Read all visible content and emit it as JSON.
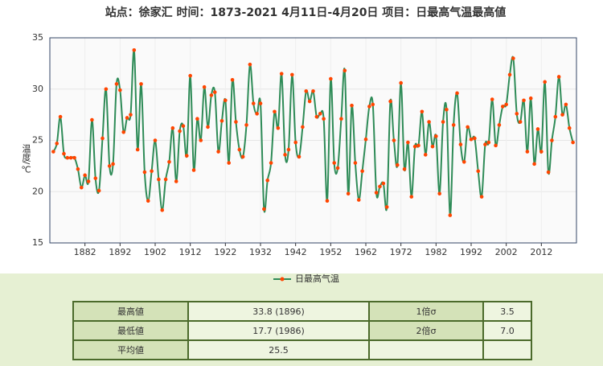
{
  "chart_data": {
    "type": "line",
    "title": "站点：徐家汇 时间：1873-2021  4月11日-4月20日 项目：日最高气温最高値",
    "y_label": "温度/℃",
    "x": [
      1873,
      1874,
      1875,
      1876,
      1877,
      1878,
      1879,
      1880,
      1881,
      1882,
      1883,
      1884,
      1885,
      1886,
      1887,
      1888,
      1889,
      1890,
      1891,
      1892,
      1893,
      1894,
      1895,
      1896,
      1897,
      1898,
      1899,
      1900,
      1901,
      1902,
      1903,
      1904,
      1905,
      1906,
      1907,
      1908,
      1909,
      1910,
      1911,
      1912,
      1913,
      1914,
      1915,
      1916,
      1917,
      1918,
      1919,
      1920,
      1921,
      1922,
      1923,
      1924,
      1925,
      1926,
      1927,
      1928,
      1929,
      1930,
      1931,
      1932,
      1933,
      1934,
      1935,
      1936,
      1937,
      1938,
      1939,
      1940,
      1941,
      1942,
      1943,
      1944,
      1945,
      1946,
      1947,
      1948,
      1949,
      1950,
      1951,
      1952,
      1953,
      1954,
      1955,
      1956,
      1957,
      1958,
      1959,
      1960,
      1961,
      1962,
      1963,
      1964,
      1965,
      1966,
      1967,
      1968,
      1969,
      1970,
      1971,
      1972,
      1973,
      1974,
      1975,
      1976,
      1977,
      1978,
      1979,
      1980,
      1981,
      1982,
      1983,
      1984,
      1985,
      1986,
      1987,
      1988,
      1989,
      1990,
      1991,
      1992,
      1993,
      1994,
      1995,
      1996,
      1997,
      1998,
      1999,
      2000,
      2001,
      2002,
      2003,
      2004,
      2005,
      2006,
      2007,
      2008,
      2009,
      2010,
      2011,
      2012,
      2013,
      2014,
      2015,
      2016,
      2017,
      2018,
      2019,
      2020,
      2021
    ],
    "series": [
      {
        "name": "日最高气温",
        "color": "#2e8b57",
        "marker_color": "#ff4500",
        "values": [
          23.9,
          24.7,
          27.3,
          23.7,
          23.3,
          23.3,
          23.3,
          22.2,
          20.4,
          21.6,
          21.0,
          27.0,
          21.3,
          20.1,
          25.2,
          30.0,
          22.5,
          22.7,
          30.5,
          29.9,
          25.8,
          27.2,
          27.5,
          33.8,
          24.1,
          30.5,
          21.9,
          19.1,
          22.0,
          25.0,
          21.2,
          18.2,
          21.2,
          22.9,
          26.2,
          21.0,
          25.9,
          26.4,
          23.5,
          31.3,
          22.1,
          27.1,
          25.0,
          30.2,
          26.3,
          29.4,
          29.7,
          23.9,
          26.9,
          28.9,
          22.8,
          30.9,
          26.8,
          24.1,
          23.4,
          26.5,
          32.4,
          28.6,
          27.6,
          28.6,
          18.3,
          21.1,
          22.8,
          27.8,
          26.2,
          31.5,
          23.6,
          24.1,
          31.4,
          24.8,
          23.4,
          26.3,
          29.8,
          28.8,
          29.8,
          27.3,
          27.6,
          27.1,
          19.1,
          31.0,
          22.8,
          22.3,
          27.1,
          31.8,
          19.8,
          28.4,
          22.8,
          19.2,
          22.0,
          25.1,
          28.3,
          28.5,
          19.9,
          20.5,
          20.8,
          18.5,
          28.8,
          25.0,
          22.6,
          30.6,
          22.2,
          24.8,
          19.5,
          24.4,
          24.5,
          27.8,
          23.6,
          26.8,
          24.4,
          25.4,
          19.8,
          26.8,
          28.0,
          17.7,
          26.5,
          29.6,
          24.6,
          22.9,
          26.3,
          25.1,
          25.2,
          22.0,
          19.5,
          24.6,
          24.8,
          29.0,
          24.5,
          26.5,
          28.3,
          28.5,
          31.4,
          33.0,
          27.6,
          26.8,
          28.9,
          23.9,
          29.1,
          22.7,
          26.1,
          23.9,
          30.7,
          21.9,
          25.0,
          27.3,
          31.2,
          27.5,
          28.5,
          26.2,
          24.8
        ]
      }
    ],
    "xlim": [
      1872,
      2022
    ],
    "xticks": [
      1882,
      1892,
      1902,
      1912,
      1922,
      1932,
      1942,
      1952,
      1962,
      1972,
      1982,
      1992,
      2002,
      2012
    ],
    "ylim": [
      15,
      35
    ],
    "yticks": [
      15,
      20,
      25,
      30,
      35
    ],
    "grid": true,
    "legend": "bottom"
  },
  "table": {
    "rows": [
      [
        "最高値",
        "33.8 (1896)",
        "1倍σ",
        "3.5"
      ],
      [
        "最低値",
        "17.7 (1986)",
        "2倍σ",
        "7.0"
      ],
      [
        "平均値",
        "25.5"
      ]
    ]
  }
}
